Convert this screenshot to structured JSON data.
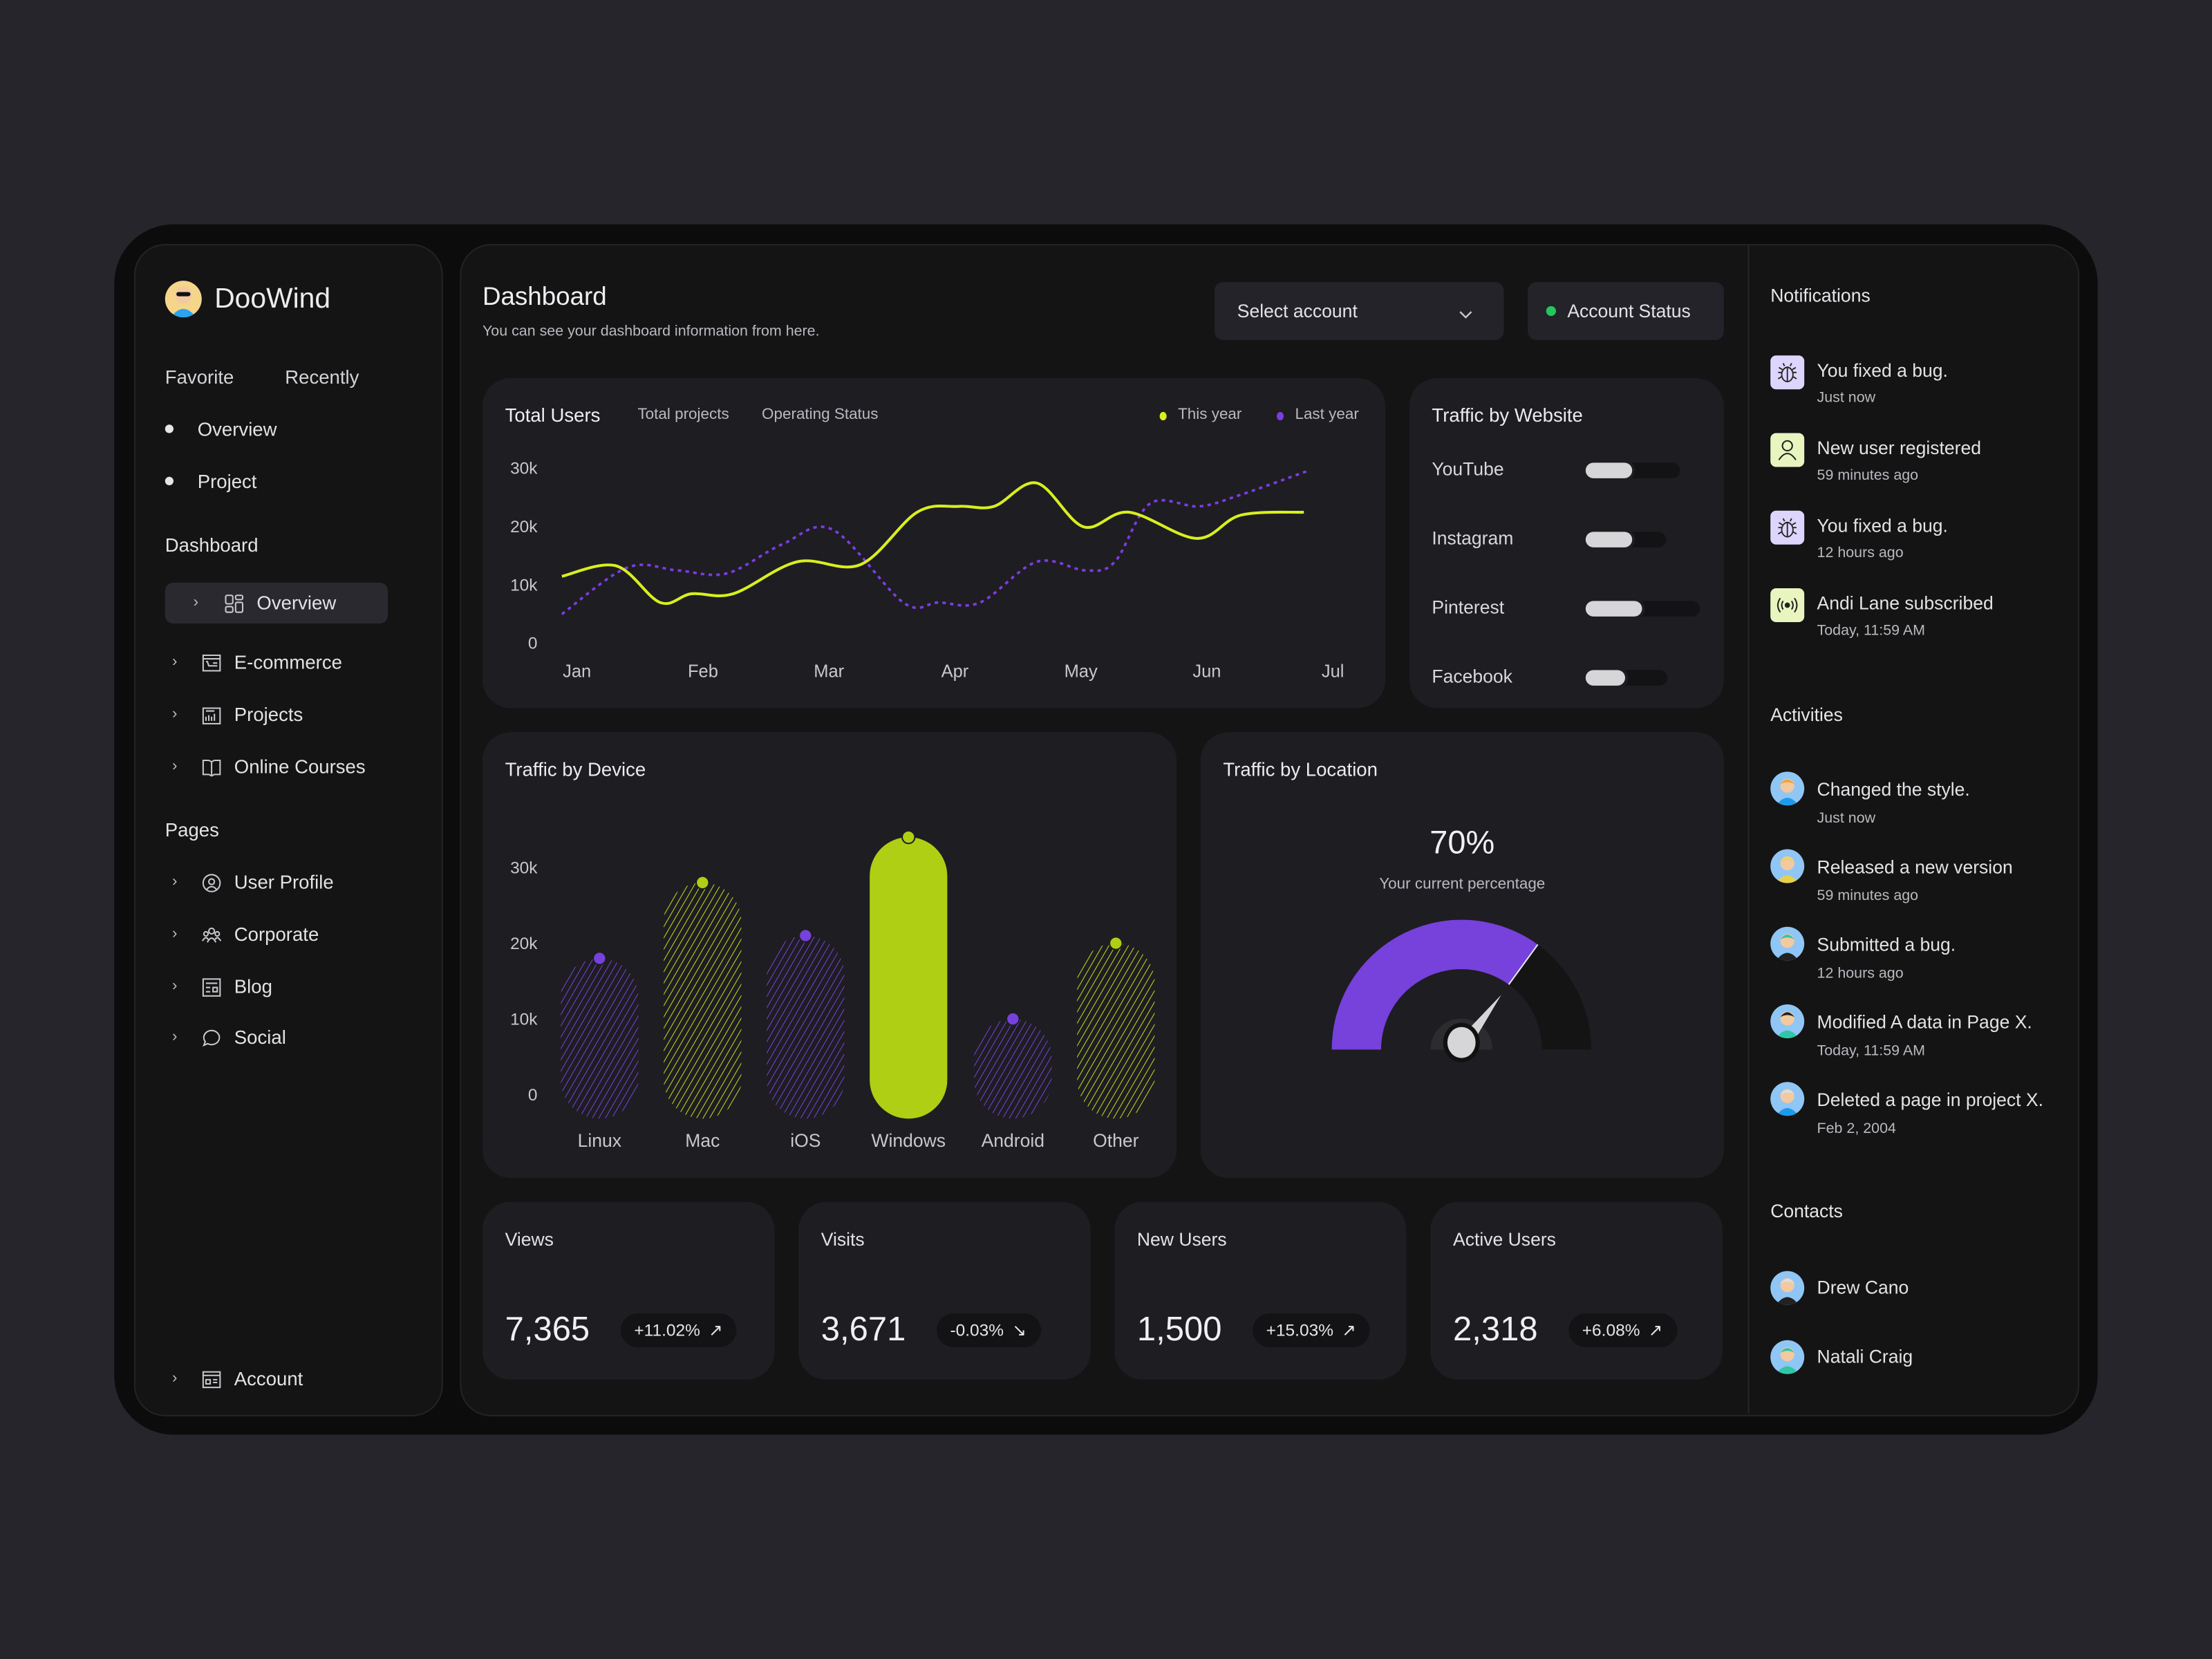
{
  "brand": {
    "name": "DooWind"
  },
  "sidebar": {
    "tabs": [
      "Favorite",
      "Recently"
    ],
    "favorites": [
      "Overview",
      "Project"
    ],
    "dashboard_heading": "Dashboard",
    "dashboard_items": [
      {
        "label": "Overview",
        "icon": "grid-icon",
        "selected": true
      },
      {
        "label": "E-commerce",
        "icon": "shop-icon"
      },
      {
        "label": "Projects",
        "icon": "chart-doc-icon"
      },
      {
        "label": "Online Courses",
        "icon": "book-icon"
      }
    ],
    "pages_heading": "Pages",
    "pages_items": [
      {
        "label": "User Profile",
        "icon": "user-circle-icon"
      },
      {
        "label": "Corporate",
        "icon": "users-icon"
      },
      {
        "label": "Blog",
        "icon": "document-icon"
      },
      {
        "label": "Social",
        "icon": "chat-icon"
      }
    ],
    "account_label": "Account"
  },
  "header": {
    "title": "Dashboard",
    "subtitle": "You can see your dashboard information from here.",
    "select_account": "Select account",
    "account_status": "Account Status",
    "status_color": "#22c55e"
  },
  "colors": {
    "lime": "#c8e62a",
    "lime_solid": "#aecf14",
    "purple": "#7741dc"
  },
  "total_users": {
    "tabs": [
      "Total Users",
      "Total projects",
      "Operating Status"
    ],
    "legend": [
      "This year",
      "Last year"
    ]
  },
  "traffic_website": {
    "title": "Traffic by Website",
    "items": [
      {
        "label": "YouTube",
        "value": 0.49
      },
      {
        "label": "Instagram",
        "value": 0.58
      },
      {
        "label": "Pinterest",
        "value": 0.49
      },
      {
        "label": "Facebook",
        "value": 0.48
      }
    ]
  },
  "traffic_location": {
    "title": "Traffic by Location",
    "value_label": "70%",
    "value": 70,
    "caption": "Your current percentage"
  },
  "stats": [
    {
      "label": "Views",
      "value": "7,365",
      "change": "+11.02%",
      "trend": "up"
    },
    {
      "label": "Visits",
      "value": "3,671",
      "change": "-0.03%",
      "trend": "down"
    },
    {
      "label": "New Users",
      "value": "1,500",
      "change": "+15.03%",
      "trend": "up"
    },
    {
      "label": "Active Users",
      "value": "2,318",
      "change": "+6.08%",
      "trend": "up"
    }
  ],
  "notifications": {
    "title": "Notifications",
    "items": [
      {
        "title": "You fixed a bug.",
        "time": "Just now",
        "icon": "bug-icon"
      },
      {
        "title": "New user registered",
        "time": "59 minutes ago",
        "icon": "user-icon"
      },
      {
        "title": "You fixed a bug.",
        "time": "12 hours ago",
        "icon": "bug-icon"
      },
      {
        "title": "Andi Lane subscribed",
        "time": "Today, 11:59 AM",
        "icon": "broadcast-icon"
      }
    ]
  },
  "activities": {
    "title": "Activities",
    "items": [
      {
        "title": "Changed the style.",
        "time": "Just now"
      },
      {
        "title": "Released a new version",
        "time": "59 minutes ago"
      },
      {
        "title": "Submitted a bug.",
        "time": "12 hours ago"
      },
      {
        "title": "Modified A data in Page X.",
        "time": "Today, 11:59 AM"
      },
      {
        "title": "Deleted a page in project X.",
        "time": "Feb 2, 2004"
      }
    ]
  },
  "contacts": {
    "title": "Contacts",
    "items": [
      "Drew Cano",
      "Natali Craig"
    ]
  },
  "chart_data": [
    {
      "type": "line",
      "title": "Total Users",
      "x_unit": "month number (1 = Jan)",
      "x_ticks": [
        "Jan",
        "Feb",
        "Mar",
        "Apr",
        "May",
        "Jun",
        "Jul"
      ],
      "y_ticks": [
        "30k",
        "20k",
        "10k",
        "0"
      ],
      "ylim": [
        0,
        30000
      ],
      "legend": "top-right",
      "series": [
        {
          "name": "This year",
          "style": "solid",
          "color": "#d8ef1f",
          "points": [
            [
              0.88,
              11500
            ],
            [
              1.31,
              13300
            ],
            [
              1.66,
              7000
            ],
            [
              1.91,
              8500
            ],
            [
              2.24,
              8500
            ],
            [
              2.75,
              14000
            ],
            [
              3.25,
              13500
            ],
            [
              3.7,
              22500
            ],
            [
              4.03,
              23500
            ],
            [
              4.31,
              23500
            ],
            [
              4.65,
              27500
            ],
            [
              5.02,
              20000
            ],
            [
              5.38,
              22500
            ],
            [
              5.92,
              18000
            ],
            [
              6.27,
              22000
            ],
            [
              6.77,
              22500
            ]
          ]
        },
        {
          "name": "Last year",
          "style": "dotted",
          "color": "#7a3de0",
          "points": [
            [
              0.88,
              5000
            ],
            [
              1.4,
              13000
            ],
            [
              1.8,
              12500
            ],
            [
              2.19,
              12000
            ],
            [
              2.63,
              17000
            ],
            [
              3.03,
              19500
            ],
            [
              3.59,
              7000
            ],
            [
              3.87,
              7000
            ],
            [
              4.2,
              7000
            ],
            [
              4.65,
              14000
            ],
            [
              5.04,
              12500
            ],
            [
              5.27,
              14000
            ],
            [
              5.55,
              24000
            ],
            [
              5.94,
              23500
            ],
            [
              6.27,
              25500
            ],
            [
              6.79,
              29500
            ]
          ]
        }
      ]
    },
    {
      "type": "bar",
      "title": "Traffic by Device",
      "categories": [
        "Linux",
        "Mac",
        "iOS",
        "Windows",
        "Android",
        "Other"
      ],
      "values": [
        18000,
        28000,
        21000,
        34000,
        10000,
        20000
      ],
      "y_ticks": [
        "30k",
        "20k",
        "10k",
        "0"
      ],
      "ylim": [
        0,
        30000
      ],
      "bar_styles": [
        "purple-hatched",
        "lime-hatched",
        "purple-hatched",
        "lime-solid",
        "purple-hatched",
        "lime-hatched"
      ]
    }
  ]
}
